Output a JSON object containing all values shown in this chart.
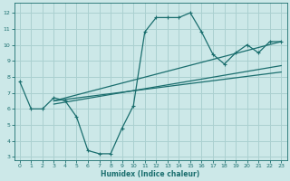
{
  "background_color": "#cce8e8",
  "grid_color": "#aad0d0",
  "line_color": "#1a6e6e",
  "xlabel": "Humidex (Indice chaleur)",
  "xlim": [
    -0.5,
    23.5
  ],
  "ylim": [
    2.8,
    12.6
  ],
  "yticks": [
    3,
    4,
    5,
    6,
    7,
    8,
    9,
    10,
    11,
    12
  ],
  "xticks": [
    0,
    1,
    2,
    3,
    4,
    5,
    6,
    7,
    8,
    9,
    10,
    11,
    12,
    13,
    14,
    15,
    16,
    17,
    18,
    19,
    20,
    21,
    22,
    23
  ],
  "main_line_x": [
    0,
    1,
    2,
    3,
    4,
    5,
    6,
    7,
    8,
    9,
    10,
    11,
    12,
    13,
    14,
    15,
    16,
    17,
    18,
    19,
    20,
    21,
    22,
    23
  ],
  "main_line_y": [
    7.7,
    6.0,
    6.0,
    6.7,
    6.5,
    5.5,
    3.4,
    3.2,
    3.2,
    4.8,
    6.2,
    10.8,
    11.7,
    11.7,
    11.7,
    12.0,
    10.8,
    9.4,
    8.8,
    9.5,
    10.0,
    9.5,
    10.2,
    10.2
  ],
  "trend1_x": [
    3.0,
    23.0
  ],
  "trend1_y": [
    6.5,
    8.3
  ],
  "trend2_x": [
    3.0,
    23.0
  ],
  "trend2_y": [
    6.3,
    8.7
  ],
  "trend3_x": [
    3.0,
    23.0
  ],
  "trend3_y": [
    6.5,
    10.2
  ]
}
